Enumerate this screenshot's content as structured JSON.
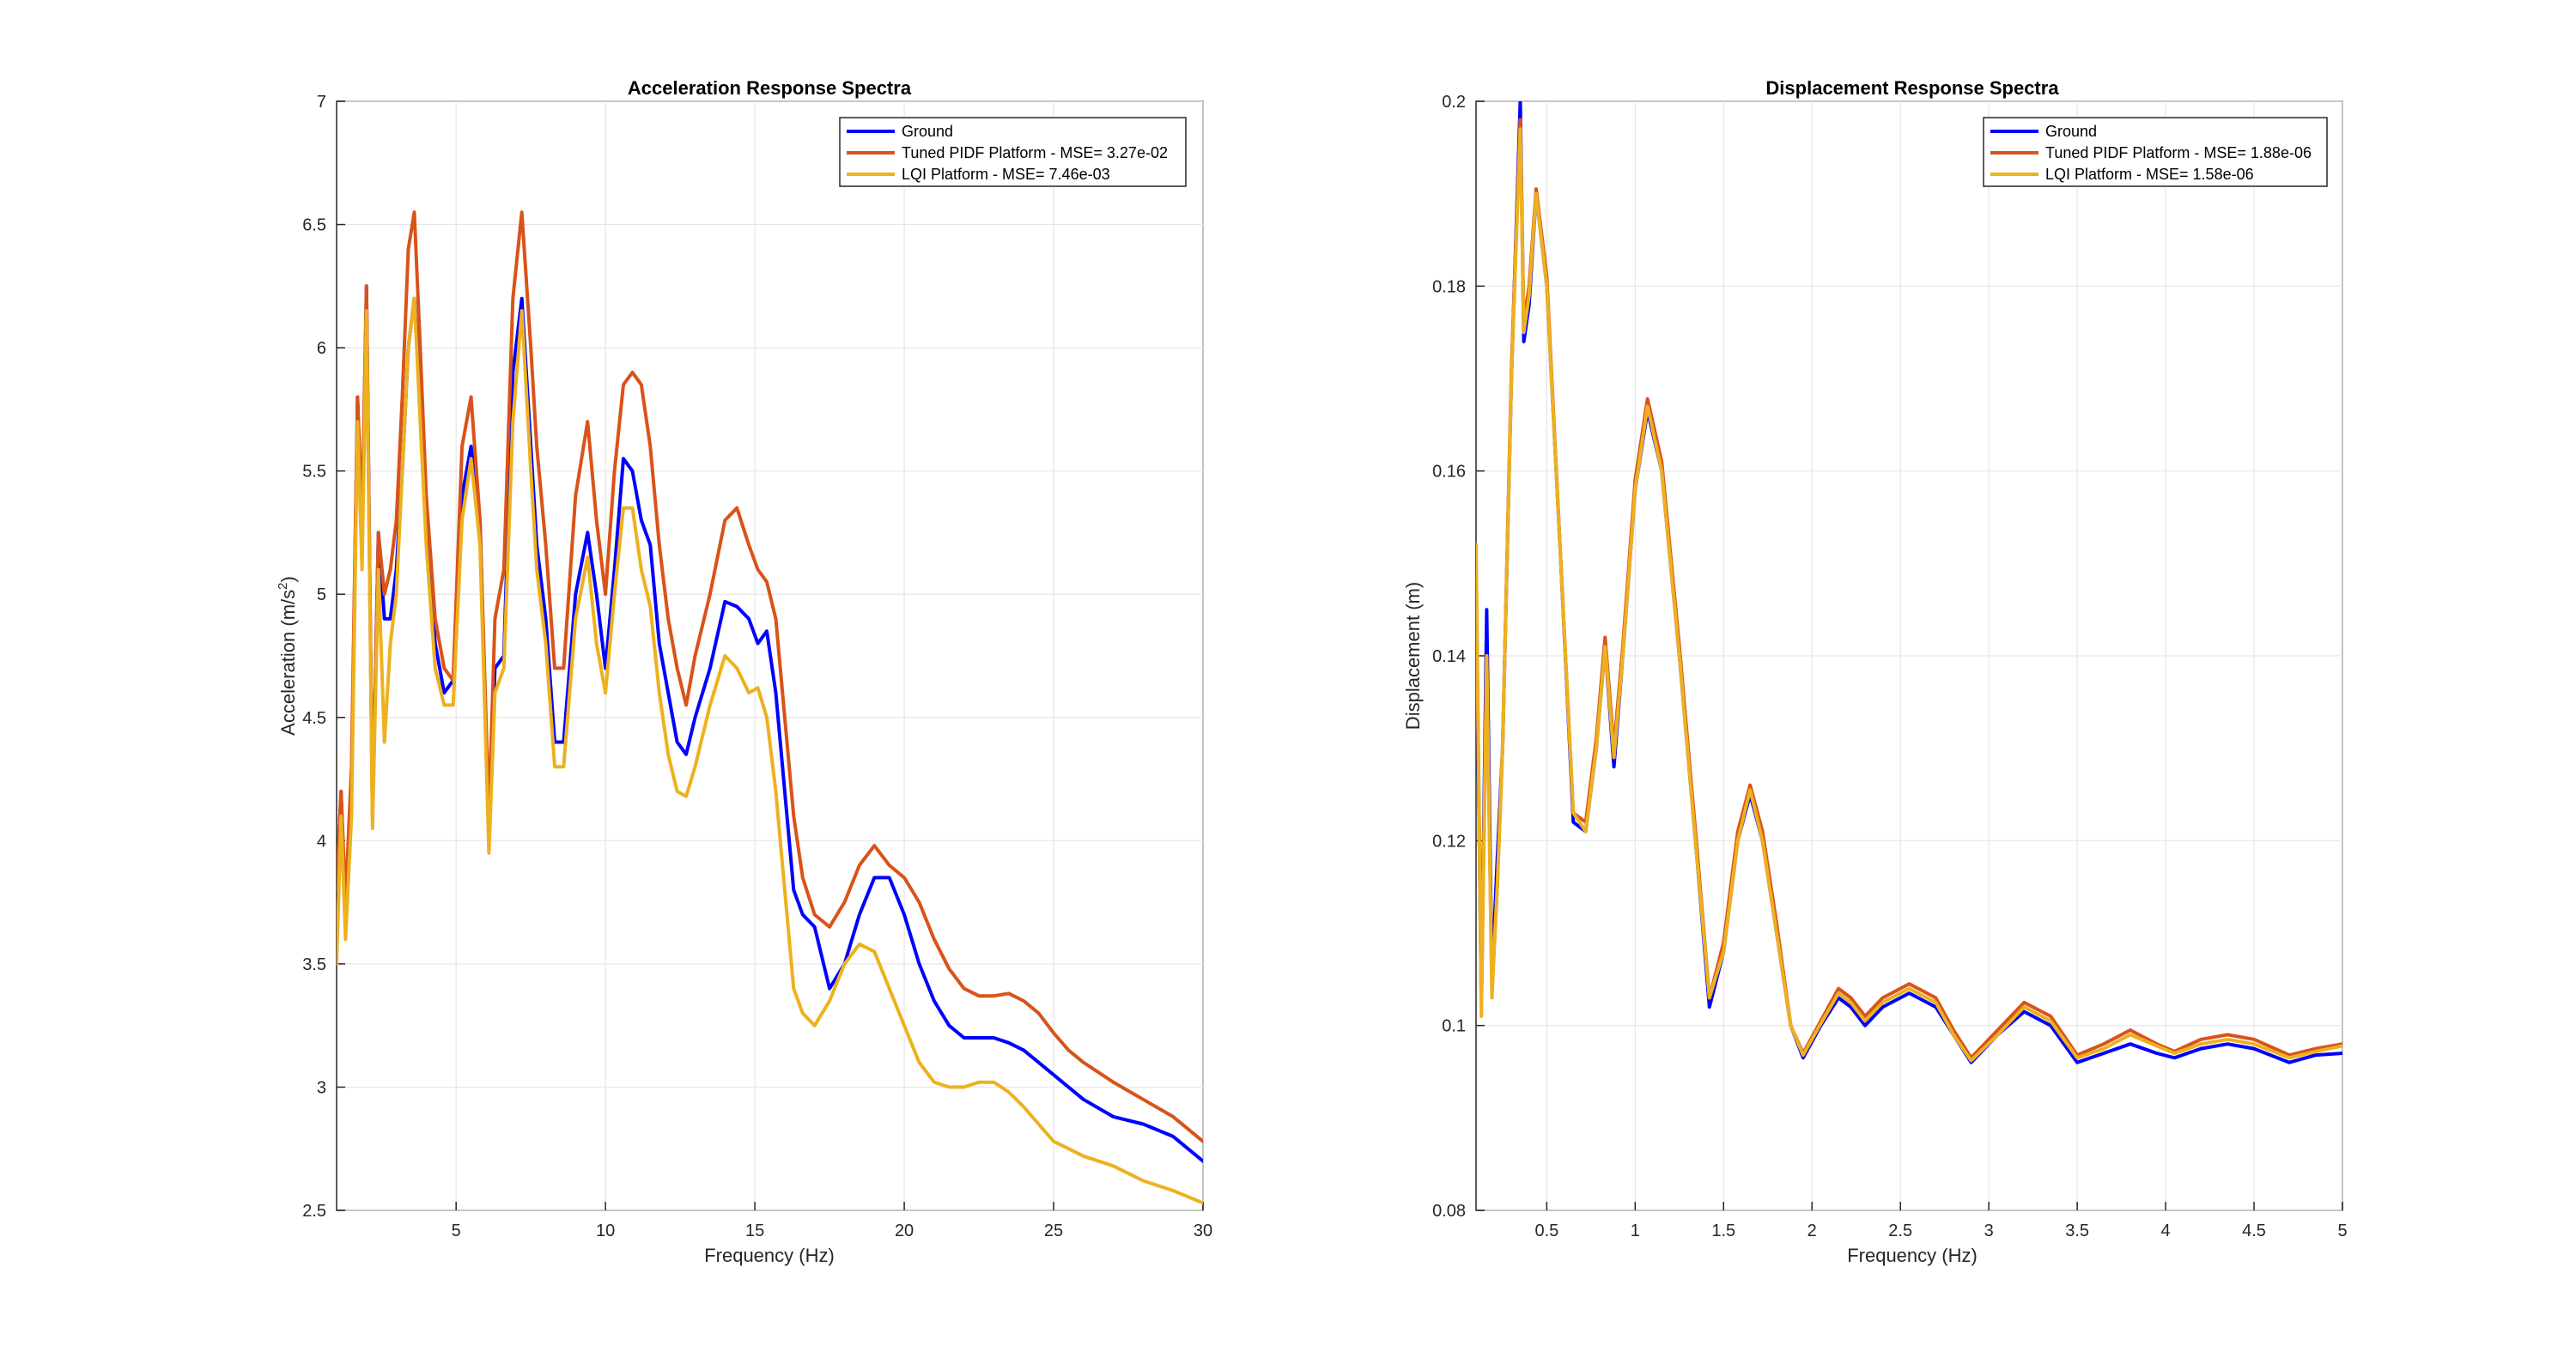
{
  "figure": {
    "background": "#ffffff"
  },
  "chart_data": [
    {
      "type": "line",
      "title": "Acceleration Response Spectra",
      "xlabel": "Frequency (Hz)",
      "ylabel": "Acceleration (m/s",
      "ylabel_superscript": "2",
      "ylabel_suffix": ")",
      "xlim": [
        1,
        30
      ],
      "ylim": [
        2.5,
        7
      ],
      "xticks": [
        5,
        10,
        15,
        20,
        25,
        30
      ],
      "xtick_labels": [
        "5",
        "10",
        "15",
        "20",
        "25",
        "30"
      ],
      "yticks": [
        2.5,
        3,
        3.5,
        4,
        4.5,
        5,
        5.5,
        6,
        6.5,
        7
      ],
      "ytick_labels": [
        "2.5",
        "3",
        "3.5",
        "4",
        "4.5",
        "5",
        "5.5",
        "6",
        "6.5",
        "7"
      ],
      "grid": true,
      "legend_position": "top-right",
      "series": [
        {
          "name": "Ground",
          "color": "#0000ff",
          "x": [
            1.0,
            1.15,
            1.3,
            1.5,
            1.7,
            1.85,
            2.0,
            2.2,
            2.4,
            2.6,
            2.8,
            3.0,
            3.2,
            3.4,
            3.6,
            3.8,
            4.0,
            4.3,
            4.6,
            4.9,
            5.2,
            5.5,
            5.8,
            6.1,
            6.3,
            6.6,
            6.9,
            7.2,
            7.5,
            7.7,
            8.0,
            8.3,
            8.6,
            9.0,
            9.4,
            9.7,
            10.0,
            10.3,
            10.6,
            10.9,
            11.2,
            11.5,
            11.8,
            12.1,
            12.4,
            12.7,
            13.0,
            13.5,
            14.0,
            14.4,
            14.8,
            15.1,
            15.4,
            15.7,
            16.0,
            16.3,
            16.6,
            17.0,
            17.5,
            18.0,
            18.5,
            19.0,
            19.5,
            20.0,
            20.5,
            21.0,
            21.5,
            22.0,
            22.5,
            23.0,
            23.5,
            24.0,
            24.5,
            25.0,
            25.5,
            26.0,
            27.0,
            28.0,
            29.0,
            30.0
          ],
          "y": [
            3.8,
            4.2,
            3.7,
            4.2,
            5.8,
            5.2,
            6.25,
            4.1,
            5.25,
            4.9,
            4.9,
            5.1,
            5.5,
            6.0,
            6.2,
            5.8,
            5.3,
            4.8,
            4.6,
            4.65,
            5.4,
            5.6,
            5.3,
            4.0,
            4.7,
            4.75,
            5.9,
            6.2,
            5.6,
            5.2,
            4.9,
            4.4,
            4.4,
            5.0,
            5.25,
            5.0,
            4.7,
            5.1,
            5.55,
            5.5,
            5.3,
            5.2,
            4.8,
            4.6,
            4.4,
            4.35,
            4.5,
            4.7,
            4.97,
            4.95,
            4.9,
            4.8,
            4.85,
            4.6,
            4.2,
            3.8,
            3.7,
            3.65,
            3.4,
            3.5,
            3.7,
            3.85,
            3.85,
            3.7,
            3.5,
            3.35,
            3.25,
            3.2,
            3.2,
            3.2,
            3.18,
            3.15,
            3.1,
            3.05,
            3.0,
            2.95,
            2.88,
            2.85,
            2.8,
            2.7
          ]
        },
        {
          "name": "Tuned PIDF Platform - MSE= 3.27e-02",
          "color": "#d95319",
          "x": [
            1.0,
            1.15,
            1.3,
            1.5,
            1.7,
            1.85,
            2.0,
            2.2,
            2.4,
            2.6,
            2.8,
            3.0,
            3.2,
            3.4,
            3.6,
            3.8,
            4.0,
            4.3,
            4.6,
            4.9,
            5.2,
            5.5,
            5.8,
            6.1,
            6.3,
            6.6,
            6.9,
            7.2,
            7.5,
            7.7,
            8.0,
            8.3,
            8.6,
            9.0,
            9.4,
            9.7,
            10.0,
            10.3,
            10.6,
            10.9,
            11.2,
            11.5,
            11.8,
            12.1,
            12.4,
            12.7,
            13.0,
            13.5,
            14.0,
            14.4,
            14.8,
            15.1,
            15.4,
            15.7,
            16.0,
            16.3,
            16.6,
            17.0,
            17.5,
            18.0,
            18.5,
            19.0,
            19.5,
            20.0,
            20.5,
            21.0,
            21.5,
            22.0,
            22.5,
            23.0,
            23.5,
            24.0,
            24.5,
            25.0,
            25.5,
            26.0,
            27.0,
            28.0,
            29.0,
            30.0
          ],
          "y": [
            3.8,
            4.2,
            3.75,
            4.3,
            5.8,
            5.3,
            6.25,
            4.1,
            5.25,
            5.0,
            5.1,
            5.3,
            5.8,
            6.4,
            6.55,
            6.0,
            5.4,
            4.9,
            4.7,
            4.65,
            5.6,
            5.8,
            5.3,
            4.1,
            4.9,
            5.1,
            6.2,
            6.55,
            6.0,
            5.6,
            5.2,
            4.7,
            4.7,
            5.4,
            5.7,
            5.3,
            5.0,
            5.5,
            5.85,
            5.9,
            5.85,
            5.6,
            5.2,
            4.9,
            4.7,
            4.55,
            4.75,
            5.0,
            5.3,
            5.35,
            5.2,
            5.1,
            5.05,
            4.9,
            4.5,
            4.1,
            3.85,
            3.7,
            3.65,
            3.75,
            3.9,
            3.98,
            3.9,
            3.85,
            3.75,
            3.6,
            3.48,
            3.4,
            3.37,
            3.37,
            3.38,
            3.35,
            3.3,
            3.22,
            3.15,
            3.1,
            3.02,
            2.95,
            2.88,
            2.78
          ]
        },
        {
          "name": "LQI Platform - MSE= 7.46e-03",
          "color": "#edb120",
          "x": [
            1.0,
            1.15,
            1.3,
            1.5,
            1.7,
            1.85,
            2.0,
            2.2,
            2.4,
            2.6,
            2.8,
            3.0,
            3.2,
            3.4,
            3.6,
            3.8,
            4.0,
            4.3,
            4.6,
            4.9,
            5.2,
            5.5,
            5.8,
            6.1,
            6.3,
            6.6,
            6.9,
            7.2,
            7.5,
            7.7,
            8.0,
            8.3,
            8.6,
            9.0,
            9.4,
            9.7,
            10.0,
            10.3,
            10.6,
            10.9,
            11.2,
            11.5,
            11.8,
            12.1,
            12.4,
            12.7,
            13.0,
            13.5,
            14.0,
            14.4,
            14.8,
            15.1,
            15.4,
            15.7,
            16.0,
            16.3,
            16.6,
            17.0,
            17.5,
            18.0,
            18.5,
            19.0,
            19.5,
            20.0,
            20.5,
            21.0,
            21.5,
            22.0,
            22.5,
            23.0,
            23.5,
            24.0,
            24.5,
            25.0,
            25.5,
            26.0,
            27.0,
            28.0,
            29.0,
            30.0
          ],
          "y": [
            3.5,
            4.1,
            3.6,
            4.1,
            5.7,
            5.1,
            6.15,
            4.05,
            5.1,
            4.4,
            4.8,
            5.0,
            5.5,
            6.0,
            6.2,
            5.7,
            5.2,
            4.7,
            4.55,
            4.55,
            5.3,
            5.55,
            5.2,
            3.95,
            4.6,
            4.7,
            5.7,
            6.15,
            5.5,
            5.1,
            4.8,
            4.3,
            4.3,
            4.9,
            5.15,
            4.8,
            4.6,
            5.0,
            5.35,
            5.35,
            5.1,
            4.95,
            4.6,
            4.35,
            4.2,
            4.18,
            4.3,
            4.55,
            4.75,
            4.7,
            4.6,
            4.62,
            4.5,
            4.2,
            3.8,
            3.4,
            3.3,
            3.25,
            3.35,
            3.5,
            3.58,
            3.55,
            3.4,
            3.25,
            3.1,
            3.02,
            3.0,
            3.0,
            3.02,
            3.02,
            2.98,
            2.92,
            2.85,
            2.78,
            2.75,
            2.72,
            2.68,
            2.62,
            2.58,
            2.53
          ]
        }
      ]
    },
    {
      "type": "line",
      "title": "Displacement Response Spectra",
      "xlabel": "Frequency (Hz)",
      "ylabel": "Displacement (m)",
      "xlim": [
        0.1,
        5
      ],
      "ylim": [
        0.08,
        0.2
      ],
      "xticks": [
        0.5,
        1,
        1.5,
        2,
        2.5,
        3,
        3.5,
        4,
        4.5,
        5
      ],
      "xtick_labels": [
        "0.5",
        "1",
        "1.5",
        "2",
        "2.5",
        "3",
        "3.5",
        "4",
        "4.5",
        "5"
      ],
      "yticks": [
        0.08,
        0.1,
        0.12,
        0.14,
        0.16,
        0.18,
        0.2
      ],
      "ytick_labels": [
        "0.08",
        "0.1",
        "0.12",
        "0.14",
        "0.16",
        "0.18",
        "0.2"
      ],
      "grid": true,
      "legend_position": "top-right",
      "series": [
        {
          "name": "Ground",
          "color": "#0000ff",
          "x": [
            0.1,
            0.13,
            0.16,
            0.19,
            0.22,
            0.25,
            0.3,
            0.35,
            0.37,
            0.4,
            0.44,
            0.5,
            0.58,
            0.65,
            0.72,
            0.78,
            0.83,
            0.88,
            0.93,
            1.0,
            1.07,
            1.15,
            1.25,
            1.35,
            1.42,
            1.5,
            1.58,
            1.65,
            1.72,
            1.8,
            1.88,
            1.95,
            2.05,
            2.15,
            2.22,
            2.3,
            2.4,
            2.55,
            2.7,
            2.8,
            2.9,
            3.05,
            3.2,
            3.35,
            3.5,
            3.65,
            3.8,
            3.95,
            4.05,
            4.2,
            4.35,
            4.5,
            4.7,
            4.85,
            5.0
          ],
          "y": [
            0.148,
            0.102,
            0.145,
            0.105,
            0.118,
            0.13,
            0.17,
            0.2,
            0.174,
            0.178,
            0.19,
            0.18,
            0.15,
            0.122,
            0.121,
            0.13,
            0.141,
            0.128,
            0.14,
            0.158,
            0.1665,
            0.16,
            0.14,
            0.118,
            0.102,
            0.108,
            0.12,
            0.125,
            0.12,
            0.11,
            0.1,
            0.0965,
            0.1,
            0.103,
            0.102,
            0.1,
            0.102,
            0.1035,
            0.102,
            0.099,
            0.096,
            0.099,
            0.1015,
            0.1,
            0.096,
            0.097,
            0.098,
            0.097,
            0.0965,
            0.0975,
            0.098,
            0.0975,
            0.096,
            0.0968,
            0.097
          ]
        },
        {
          "name": "Tuned PIDF Platform - MSE= 1.88e-06",
          "color": "#d95319",
          "x": [
            0.1,
            0.13,
            0.16,
            0.19,
            0.22,
            0.25,
            0.3,
            0.35,
            0.37,
            0.4,
            0.44,
            0.5,
            0.58,
            0.65,
            0.72,
            0.78,
            0.83,
            0.88,
            0.93,
            1.0,
            1.07,
            1.15,
            1.25,
            1.35,
            1.42,
            1.5,
            1.58,
            1.65,
            1.72,
            1.8,
            1.88,
            1.95,
            2.05,
            2.15,
            2.22,
            2.3,
            2.4,
            2.55,
            2.7,
            2.8,
            2.9,
            3.05,
            3.2,
            3.35,
            3.5,
            3.65,
            3.8,
            3.95,
            4.05,
            4.2,
            4.35,
            4.5,
            4.7,
            4.85,
            5.0
          ],
          "y": [
            0.15,
            0.103,
            0.14,
            0.104,
            0.115,
            0.13,
            0.171,
            0.198,
            0.176,
            0.18,
            0.1905,
            0.181,
            0.15,
            0.123,
            0.122,
            0.131,
            0.142,
            0.13,
            0.141,
            0.159,
            0.1678,
            0.161,
            0.141,
            0.119,
            0.103,
            0.109,
            0.121,
            0.126,
            0.121,
            0.111,
            0.1,
            0.097,
            0.1005,
            0.104,
            0.103,
            0.101,
            0.103,
            0.1045,
            0.103,
            0.0995,
            0.0965,
            0.0995,
            0.1025,
            0.101,
            0.0968,
            0.098,
            0.0995,
            0.098,
            0.0972,
            0.0985,
            0.099,
            0.0985,
            0.0968,
            0.0975,
            0.098
          ]
        },
        {
          "name": "LQI Platform - MSE= 1.58e-06",
          "color": "#edb120",
          "x": [
            0.1,
            0.13,
            0.16,
            0.19,
            0.22,
            0.25,
            0.3,
            0.35,
            0.37,
            0.4,
            0.44,
            0.5,
            0.58,
            0.65,
            0.72,
            0.78,
            0.83,
            0.88,
            0.93,
            1.0,
            1.07,
            1.15,
            1.25,
            1.35,
            1.42,
            1.5,
            1.58,
            1.65,
            1.72,
            1.8,
            1.88,
            1.95,
            2.05,
            2.15,
            2.22,
            2.3,
            2.4,
            2.55,
            2.7,
            2.8,
            2.9,
            3.05,
            3.2,
            3.35,
            3.5,
            3.65,
            3.8,
            3.95,
            4.05,
            4.2,
            4.35,
            4.5,
            4.7,
            4.85,
            5.0
          ],
          "y": [
            0.152,
            0.101,
            0.14,
            0.103,
            0.115,
            0.13,
            0.17,
            0.197,
            0.175,
            0.179,
            0.19,
            0.18,
            0.15,
            0.123,
            0.121,
            0.13,
            0.141,
            0.129,
            0.14,
            0.158,
            0.167,
            0.16,
            0.14,
            0.118,
            0.103,
            0.108,
            0.12,
            0.1255,
            0.12,
            0.11,
            0.1,
            0.0968,
            0.1002,
            0.1035,
            0.1025,
            0.1005,
            0.1025,
            0.104,
            0.1025,
            0.099,
            0.0962,
            0.099,
            0.102,
            0.1005,
            0.0965,
            0.0975,
            0.099,
            0.0978,
            0.097,
            0.098,
            0.0985,
            0.098,
            0.0965,
            0.0972,
            0.0978
          ]
        }
      ]
    }
  ]
}
